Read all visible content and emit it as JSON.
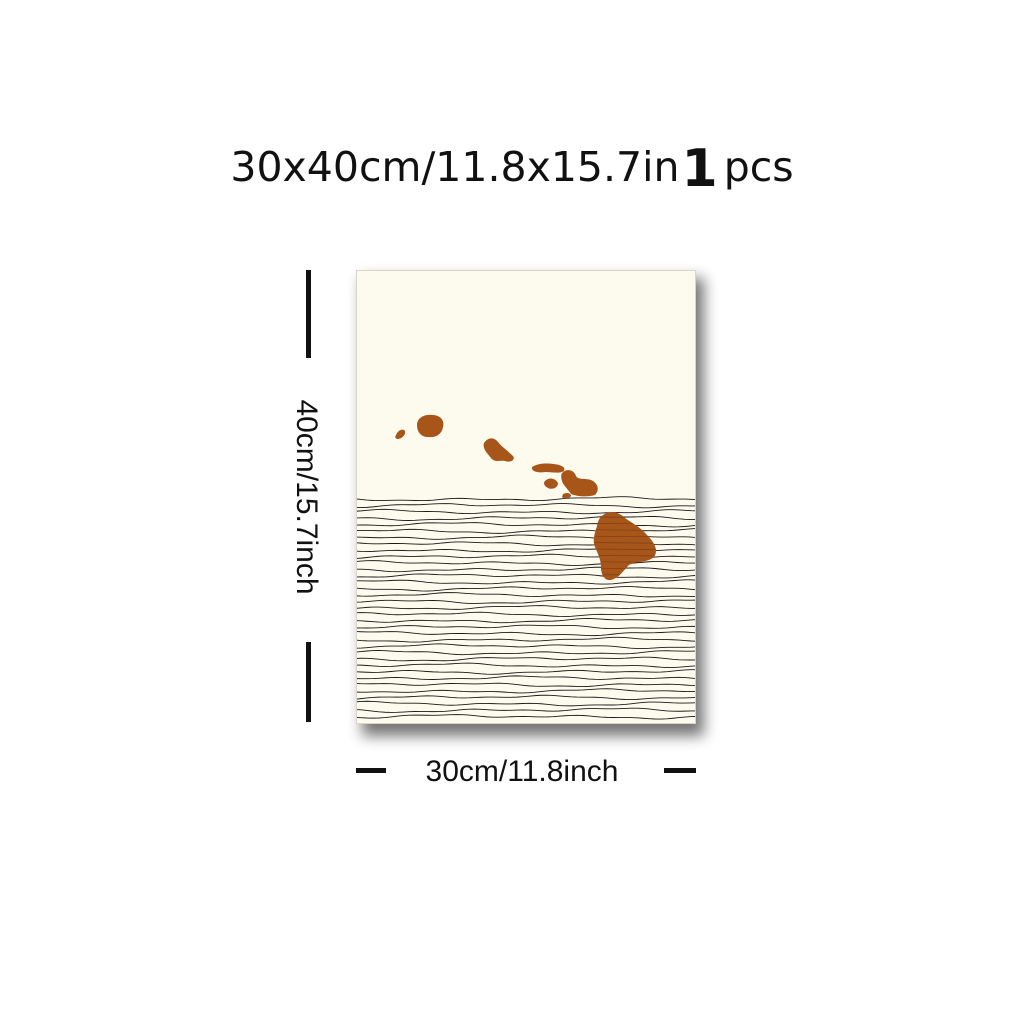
{
  "headline": {
    "size_text": "30x40cm/11.8x15.7in",
    "quantity": "1",
    "unit": "pcs"
  },
  "dimensions": {
    "height_label": "40cm/15.7inch",
    "width_label": "30cm/11.8inch"
  },
  "artwork": {
    "subject": "Hawaiian islands over ocean line pattern",
    "background_color": "#fdfbee",
    "island_color": "#a8551a",
    "line_color": "#1a1a1a"
  }
}
